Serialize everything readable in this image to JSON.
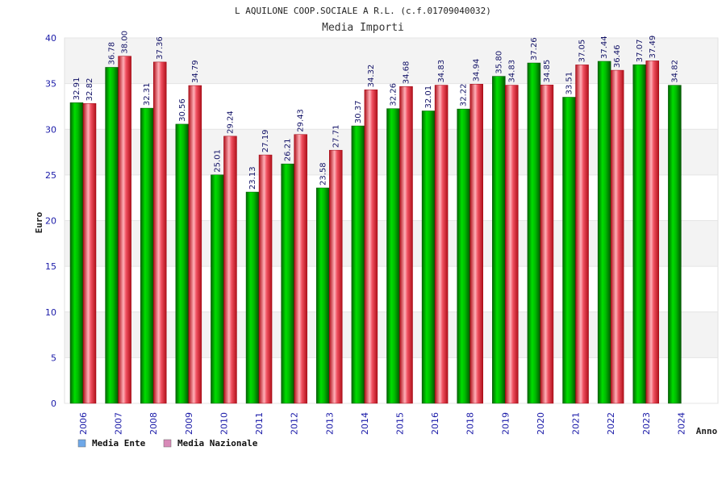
{
  "chart_data": {
    "type": "bar",
    "title": "L AQUILONE COOP.SOCIALE A R.L. (c.f.01709040032)",
    "subtitle": "Media Importi",
    "xlabel": "Anno",
    "ylabel": "Euro",
    "ylim": [
      0,
      40
    ],
    "yticks": [
      0,
      5,
      10,
      15,
      20,
      25,
      30,
      35,
      40
    ],
    "grid": true,
    "legend_position": "bottom-left",
    "categories": [
      "2006",
      "2007",
      "2008",
      "2009",
      "2010",
      "2011",
      "2012",
      "2013",
      "2014",
      "2015",
      "2016",
      "2018",
      "2019",
      "2020",
      "2021",
      "2022",
      "2023",
      "2024"
    ],
    "series": [
      {
        "name": "Media Ente",
        "color": "#00aa00",
        "legend_color": "#6fa8e8",
        "values": [
          32.91,
          36.78,
          32.31,
          30.56,
          25.01,
          23.13,
          26.21,
          23.58,
          30.37,
          32.26,
          32.01,
          32.22,
          35.8,
          37.26,
          33.51,
          37.44,
          37.07,
          34.82
        ],
        "labels": [
          "32.91",
          "36.78",
          "32.31",
          "30.56",
          "25.01",
          "23.13",
          "26.21",
          "23.58",
          "30.37",
          "32.26",
          "32.01",
          "32.22",
          "35.80",
          "37.26",
          "33.51",
          "37.44",
          "37.07",
          "34.82"
        ]
      },
      {
        "name": "Media Nazionale",
        "color": "#e8202a",
        "legend_color": "#d88ab8",
        "values": [
          32.82,
          38.0,
          37.36,
          34.79,
          29.24,
          27.19,
          29.43,
          27.71,
          34.32,
          34.68,
          34.83,
          34.94,
          34.83,
          34.85,
          37.05,
          36.46,
          37.49,
          null
        ],
        "labels": [
          "32.82",
          "38.00",
          "37.36",
          "34.79",
          "29.24",
          "27.19",
          "29.43",
          "27.71",
          "34.32",
          "34.68",
          "34.83",
          "34.94",
          "34.83",
          "34.85",
          "37.05",
          "36.46",
          "37.49",
          ""
        ]
      }
    ]
  }
}
